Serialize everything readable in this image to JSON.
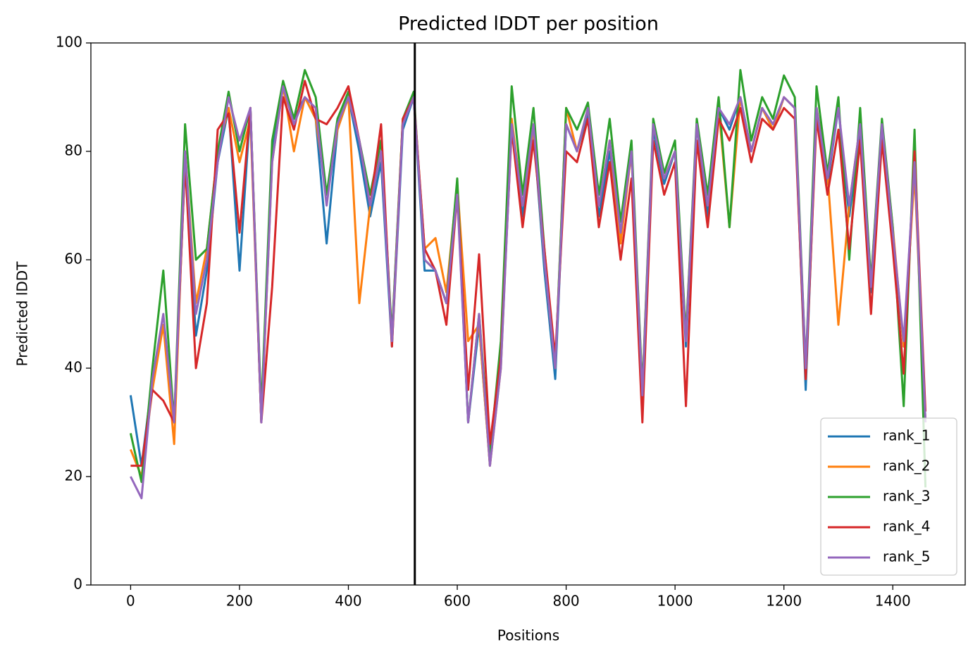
{
  "chart_data": {
    "type": "line",
    "title": "Predicted lDDT per position",
    "xlabel": "Positions",
    "ylabel": "Predicted lDDT",
    "x": [
      0,
      20,
      40,
      60,
      80,
      100,
      120,
      140,
      160,
      180,
      200,
      220,
      240,
      260,
      280,
      300,
      320,
      340,
      360,
      380,
      400,
      420,
      440,
      460,
      480,
      500,
      520,
      540,
      560,
      580,
      600,
      620,
      640,
      660,
      680,
      700,
      720,
      740,
      760,
      780,
      800,
      820,
      840,
      860,
      880,
      900,
      920,
      940,
      960,
      980,
      1000,
      1020,
      1040,
      1060,
      1080,
      1100,
      1120,
      1140,
      1160,
      1180,
      1200,
      1220,
      1240,
      1260,
      1280,
      1300,
      1320,
      1340,
      1360,
      1380,
      1400,
      1420,
      1440,
      1460
    ],
    "series": [
      {
        "name": "rank_1",
        "color": "#1f77b4",
        "values": [
          35,
          22,
          38,
          48,
          30,
          78,
          46,
          58,
          78,
          88,
          58,
          88,
          30,
          80,
          92,
          86,
          90,
          86,
          63,
          84,
          90,
          80,
          68,
          78,
          44,
          84,
          90,
          58,
          58,
          52,
          73,
          30,
          48,
          22,
          42,
          85,
          68,
          84,
          58,
          38,
          85,
          80,
          87,
          68,
          80,
          64,
          80,
          34,
          84,
          74,
          80,
          44,
          85,
          68,
          88,
          84,
          90,
          80,
          88,
          84,
          90,
          88,
          36,
          88,
          74,
          88,
          68,
          84,
          54,
          84,
          64,
          44,
          78,
          30
        ]
      },
      {
        "name": "rank_2",
        "color": "#ff7f0e",
        "values": [
          25,
          20,
          36,
          48,
          26,
          80,
          52,
          62,
          80,
          88,
          78,
          86,
          30,
          78,
          92,
          80,
          90,
          86,
          72,
          84,
          90,
          52,
          70,
          80,
          46,
          86,
          90,
          62,
          64,
          54,
          74,
          45,
          48,
          22,
          40,
          86,
          70,
          84,
          60,
          40,
          88,
          80,
          88,
          70,
          82,
          63,
          80,
          36,
          85,
          75,
          80,
          46,
          85,
          70,
          88,
          66,
          90,
          80,
          88,
          84,
          90,
          88,
          38,
          88,
          76,
          48,
          70,
          85,
          56,
          85,
          66,
          44,
          76,
          30
        ]
      },
      {
        "name": "rank_3",
        "color": "#2ca02c",
        "values": [
          28,
          19,
          40,
          58,
          30,
          85,
          60,
          62,
          80,
          91,
          80,
          88,
          32,
          82,
          93,
          86,
          95,
          90,
          72,
          86,
          91,
          82,
          72,
          82,
          46,
          86,
          91,
          60,
          58,
          52,
          75,
          30,
          50,
          24,
          45,
          92,
          72,
          88,
          62,
          40,
          88,
          84,
          89,
          72,
          86,
          67,
          82,
          36,
          86,
          76,
          82,
          46,
          86,
          72,
          90,
          66,
          95,
          82,
          90,
          86,
          94,
          90,
          40,
          92,
          76,
          90,
          60,
          88,
          56,
          86,
          66,
          33,
          84,
          18
        ]
      },
      {
        "name": "rank_4",
        "color": "#d62728",
        "values": [
          22,
          22,
          36,
          34,
          30,
          78,
          40,
          52,
          84,
          87,
          65,
          88,
          30,
          55,
          90,
          84,
          93,
          86,
          85,
          88,
          92,
          82,
          70,
          85,
          44,
          86,
          90,
          62,
          58,
          48,
          72,
          36,
          61,
          26,
          42,
          84,
          66,
          82,
          62,
          42,
          80,
          78,
          86,
          66,
          78,
          60,
          75,
          30,
          82,
          72,
          78,
          33,
          82,
          66,
          86,
          82,
          88,
          78,
          86,
          84,
          88,
          86,
          38,
          86,
          72,
          84,
          62,
          82,
          50,
          82,
          62,
          39,
          80,
          32
        ]
      },
      {
        "name": "rank_5",
        "color": "#9467bd",
        "values": [
          20,
          16,
          38,
          50,
          30,
          80,
          50,
          60,
          78,
          90,
          82,
          88,
          30,
          78,
          92,
          85,
          90,
          88,
          70,
          85,
          90,
          82,
          70,
          80,
          45,
          85,
          90,
          60,
          58,
          52,
          72,
          30,
          50,
          22,
          40,
          85,
          70,
          85,
          60,
          40,
          85,
          80,
          88,
          70,
          82,
          65,
          80,
          35,
          85,
          75,
          80,
          45,
          85,
          70,
          88,
          85,
          90,
          80,
          88,
          85,
          90,
          88,
          40,
          88,
          75,
          88,
          70,
          85,
          55,
          85,
          65,
          45,
          78,
          30
        ]
      }
    ],
    "vline": 522,
    "xlim": [
      -73,
      1533
    ],
    "ylim": [
      0,
      100
    ],
    "xticks": [
      0,
      200,
      400,
      600,
      800,
      1000,
      1200,
      1400
    ],
    "yticks": [
      0,
      20,
      40,
      60,
      80,
      100
    ],
    "legend": "lower right"
  }
}
